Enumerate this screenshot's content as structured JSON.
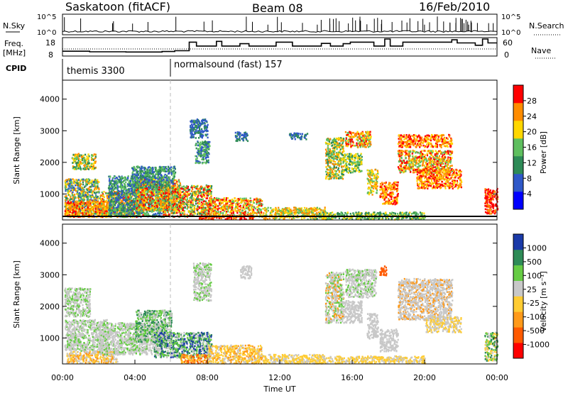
{
  "header": {
    "station": "Saskatoon (fitACF)",
    "beam": "Beam 08",
    "date": "16/Feb/2010"
  },
  "chart_data": [
    {
      "type": "line",
      "panel": "noise",
      "left_label": "N.Sky",
      "right_label": "N.Search",
      "left_ticks": [
        "10^5",
        "10^0"
      ],
      "right_ticks": [
        "10^5",
        "10^0"
      ],
      "baseline_level": 0.4
    },
    {
      "type": "line",
      "panel": "frequency",
      "left_label_top": "Freq.",
      "left_label_bottom": "[MHz]",
      "right_label": "Nave",
      "left_ticks": [
        "18",
        "8"
      ],
      "right_ticks": [
        "60",
        "0"
      ],
      "xlim": [
        0,
        24
      ],
      "freq_steps": [
        [
          0,
          0.22
        ],
        [
          1.5,
          0.18
        ],
        [
          3.5,
          0.17
        ],
        [
          5.5,
          0.2
        ],
        [
          6.2,
          0.25
        ],
        [
          7,
          0.8
        ],
        [
          7.4,
          0.55
        ],
        [
          8.5,
          0.85
        ],
        [
          8.8,
          0.55
        ],
        [
          9.8,
          0.7
        ],
        [
          10.3,
          0.55
        ],
        [
          11.8,
          0.8
        ],
        [
          12.7,
          0.55
        ],
        [
          14.3,
          0.72
        ],
        [
          14.8,
          0.55
        ],
        [
          15.5,
          0.7
        ],
        [
          15.9,
          0.8
        ],
        [
          17.2,
          0.55
        ],
        [
          17.8,
          1.0
        ],
        [
          18.1,
          0.55
        ],
        [
          18.8,
          0.8
        ],
        [
          21.5,
          0.95
        ],
        [
          21.8,
          0.75
        ],
        [
          22.8,
          0.6
        ],
        [
          23.2,
          1.0
        ],
        [
          23.5,
          0.75
        ]
      ]
    },
    {
      "type": "table",
      "panel": "cpid",
      "label": "CPID",
      "entries": [
        {
          "start": 0,
          "name": "themis 3300"
        },
        {
          "start": 5.85,
          "name": "normalsound (fast) 157"
        }
      ]
    },
    {
      "type": "heatmap",
      "panel": "power",
      "ylabel": "Slant Range [km]",
      "yticks": [
        1000,
        2000,
        3000,
        4000
      ],
      "ylim": [
        180,
        4600
      ],
      "xlim": [
        0,
        24
      ],
      "colorbar_label": "Power [dB]",
      "colorbar_ticks": [
        "4",
        "8",
        "12",
        "16",
        "20",
        "24",
        "28"
      ],
      "colors": [
        "#0000ff",
        "#2f58c8",
        "#2e8b57",
        "#5fbf5f",
        "#ffd700",
        "#ff8c00",
        "#ff0000"
      ],
      "regions": [
        {
          "x": [
            0.1,
            2.0
          ],
          "y": [
            300,
            1500
          ],
          "c": [
            1,
            2,
            3,
            4,
            5
          ]
        },
        {
          "x": [
            0.1,
            2.7
          ],
          "y": [
            300,
            800
          ],
          "c": [
            4,
            5,
            6,
            5
          ]
        },
        {
          "x": [
            0.5,
            1.8
          ],
          "y": [
            1800,
            2300
          ],
          "c": [
            2,
            4,
            5,
            3
          ]
        },
        {
          "x": [
            2.0,
            4.5
          ],
          "y": [
            300,
            1100
          ],
          "c": [
            4,
            5,
            6,
            5,
            3
          ]
        },
        {
          "x": [
            2.5,
            5.5
          ],
          "y": [
            300,
            1600
          ],
          "c": [
            1,
            2,
            3
          ]
        },
        {
          "x": [
            4.0,
            6.5
          ],
          "y": [
            500,
            1500
          ],
          "c": [
            3,
            4,
            5,
            6
          ]
        },
        {
          "x": [
            3.8,
            6.2
          ],
          "y": [
            1200,
            1900
          ],
          "c": [
            1,
            2,
            3
          ]
        },
        {
          "x": [
            5.5,
            8.2
          ],
          "y": [
            300,
            1300
          ],
          "c": [
            2,
            3,
            4,
            5,
            6
          ]
        },
        {
          "x": [
            7.0,
            8.0
          ],
          "y": [
            2800,
            3400
          ],
          "c": [
            1,
            2
          ]
        },
        {
          "x": [
            7.3,
            8.1
          ],
          "y": [
            2000,
            2700
          ],
          "c": [
            1,
            2,
            3
          ]
        },
        {
          "x": [
            8.0,
            11.0
          ],
          "y": [
            300,
            900
          ],
          "c": [
            3,
            4,
            5,
            6
          ]
        },
        {
          "x": [
            7.5,
            10.5
          ],
          "y": [
            220,
            350
          ],
          "c": [
            6,
            5
          ]
        },
        {
          "x": [
            9.5,
            10.2
          ],
          "y": [
            2700,
            3000
          ],
          "c": [
            1,
            2
          ]
        },
        {
          "x": [
            12.5,
            13.5
          ],
          "y": [
            2750,
            2950
          ],
          "c": [
            1,
            2
          ]
        },
        {
          "x": [
            11.0,
            14.5
          ],
          "y": [
            220,
            600
          ],
          "c": [
            3,
            4,
            5
          ]
        },
        {
          "x": [
            14.5,
            15.5
          ],
          "y": [
            1500,
            2800
          ],
          "c": [
            2,
            3,
            4,
            5
          ]
        },
        {
          "x": [
            15.6,
            17.0
          ],
          "y": [
            2500,
            3000
          ],
          "c": [
            3,
            4,
            5,
            6
          ]
        },
        {
          "x": [
            15.5,
            16.5
          ],
          "y": [
            1700,
            2300
          ],
          "c": [
            2,
            3,
            4
          ]
        },
        {
          "x": [
            16.8,
            17.4
          ],
          "y": [
            1000,
            1800
          ],
          "c": [
            3,
            4,
            5
          ]
        },
        {
          "x": [
            17.5,
            18.5
          ],
          "y": [
            700,
            1400
          ],
          "c": [
            4,
            5,
            6
          ]
        },
        {
          "x": [
            18.5,
            21.5
          ],
          "y": [
            2500,
            2900
          ],
          "c": [
            4,
            5,
            6
          ]
        },
        {
          "x": [
            18.5,
            21.5
          ],
          "y": [
            1700,
            2400
          ],
          "c": [
            3,
            4,
            5,
            6
          ]
        },
        {
          "x": [
            19.5,
            22.0
          ],
          "y": [
            1200,
            1800
          ],
          "c": [
            4,
            5,
            6
          ]
        },
        {
          "x": [
            23.3,
            24.0
          ],
          "y": [
            400,
            1200
          ],
          "c": [
            6,
            5,
            6
          ]
        },
        {
          "x": [
            14.0,
            20.0
          ],
          "y": [
            220,
            450
          ],
          "c": [
            2,
            3,
            4
          ]
        }
      ]
    },
    {
      "type": "heatmap",
      "panel": "velocity",
      "ylabel": "Slant Range [km]",
      "yticks": [
        1000,
        2000,
        3000,
        4000
      ],
      "ylim": [
        180,
        4600
      ],
      "xlim": [
        0,
        24
      ],
      "xticks": [
        "00:00",
        "04:00",
        "08:00",
        "12:00",
        "16:00",
        "20:00",
        "00:00"
      ],
      "xlabel": "Time UT",
      "colorbar_label": "Velocity [m s⁻¹]",
      "colorbar_ticks": [
        "-1000",
        "-500",
        "-100",
        "-25",
        "25",
        "100",
        "500",
        "1000"
      ],
      "colors": [
        "#ff0000",
        "#ff5a00",
        "#ff9a1a",
        "#ffcc33",
        "#c8c8c8",
        "#66cc44",
        "#2e8b57",
        "#1a3aa8"
      ],
      "regions": [
        {
          "x": [
            0.1,
            2.5
          ],
          "y": [
            600,
            1600
          ],
          "c": [
            4,
            4,
            4,
            5
          ]
        },
        {
          "x": [
            0.1,
            1.5
          ],
          "y": [
            1700,
            2600
          ],
          "c": [
            4,
            4,
            5
          ]
        },
        {
          "x": [
            0.2,
            3.0
          ],
          "y": [
            220,
            600
          ],
          "c": [
            3,
            2,
            4
          ]
        },
        {
          "x": [
            2.0,
            5.5
          ],
          "y": [
            500,
            1500
          ],
          "c": [
            4,
            4,
            4,
            5
          ]
        },
        {
          "x": [
            4.0,
            6.0
          ],
          "y": [
            900,
            1900
          ],
          "c": [
            5,
            6,
            4
          ]
        },
        {
          "x": [
            5.0,
            8.2
          ],
          "y": [
            400,
            1200
          ],
          "c": [
            5,
            6,
            7,
            4
          ]
        },
        {
          "x": [
            6.5,
            8.0
          ],
          "y": [
            220,
            500
          ],
          "c": [
            2,
            3,
            1
          ]
        },
        {
          "x": [
            7.2,
            8.2
          ],
          "y": [
            2200,
            3400
          ],
          "c": [
            4,
            4,
            5
          ]
        },
        {
          "x": [
            8.0,
            11.0
          ],
          "y": [
            220,
            800
          ],
          "c": [
            3,
            2,
            4,
            3
          ]
        },
        {
          "x": [
            9.8,
            10.4
          ],
          "y": [
            2900,
            3300
          ],
          "c": [
            4,
            4
          ]
        },
        {
          "x": [
            11.0,
            14.5
          ],
          "y": [
            220,
            500
          ],
          "c": [
            3,
            3,
            4
          ]
        },
        {
          "x": [
            14.5,
            15.5
          ],
          "y": [
            1500,
            3100
          ],
          "c": [
            4,
            4,
            5,
            2
          ]
        },
        {
          "x": [
            15.6,
            17.3
          ],
          "y": [
            2300,
            3200
          ],
          "c": [
            4,
            4,
            4,
            5
          ]
        },
        {
          "x": [
            15.5,
            16.5
          ],
          "y": [
            1500,
            2200
          ],
          "c": [
            4,
            4
          ]
        },
        {
          "x": [
            16.8,
            17.4
          ],
          "y": [
            1000,
            1800
          ],
          "c": [
            4,
            4
          ]
        },
        {
          "x": [
            17.5,
            18.5
          ],
          "y": [
            600,
            1300
          ],
          "c": [
            4,
            4
          ]
        },
        {
          "x": [
            17.5,
            17.9
          ],
          "y": [
            3000,
            3300
          ],
          "c": [
            1
          ]
        },
        {
          "x": [
            18.5,
            21.5
          ],
          "y": [
            1600,
            2900
          ],
          "c": [
            4,
            4,
            4,
            2
          ]
        },
        {
          "x": [
            20.0,
            22.0
          ],
          "y": [
            1200,
            1700
          ],
          "c": [
            4,
            3
          ]
        },
        {
          "x": [
            14.0,
            20.0
          ],
          "y": [
            220,
            450
          ],
          "c": [
            3,
            4,
            3
          ]
        },
        {
          "x": [
            23.3,
            24.0
          ],
          "y": [
            300,
            1200
          ],
          "c": [
            4,
            5,
            6,
            3
          ]
        }
      ]
    }
  ]
}
